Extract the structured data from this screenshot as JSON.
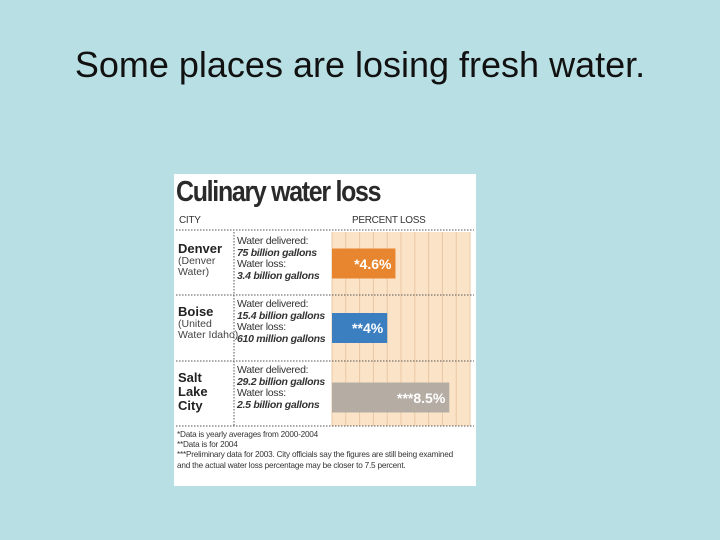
{
  "slide": {
    "title": "Some places are losing fresh water."
  },
  "chart_data": {
    "type": "bar",
    "orientation": "horizontal",
    "title": "Culinary water loss",
    "column_headers": {
      "city": "CITY",
      "percent": "PERCENT LOSS"
    },
    "xlim": [
      0,
      10
    ],
    "rows": [
      {
        "city": "Denver",
        "utility": "(Denver\nWater)",
        "delivered_label": "Water delivered:",
        "delivered": "75 billion gallons",
        "loss_label": "Water loss:",
        "loss": "3.4 billion gallons",
        "value": 4.6,
        "value_label": "*4.6%",
        "color": "#e8862f"
      },
      {
        "city": "Boise",
        "utility": "(United\nWater Idaho)",
        "delivered_label": "Water delivered:",
        "delivered": "15.4 billion gallons",
        "loss_label": "Water loss:",
        "loss": "610 million gallons",
        "value": 4.0,
        "value_label": "**4%",
        "color": "#3c7fc1"
      },
      {
        "city": "Salt\nLake\nCity",
        "utility": "",
        "delivered_label": "Water delivered:",
        "delivered": "29.2 billion gallons",
        "loss_label": "Water loss:",
        "loss": "2.5 billion gallons",
        "value": 8.5,
        "value_label": "***8.5%",
        "color": "#b5aca4"
      }
    ],
    "footnotes": [
      "*Data is yearly averages from 2000-2004",
      "**Data is for 2004",
      "***Preliminary data for 2003. City officials say the figures are still being examined",
      "and the actual  water loss percentage may be closer to 7.5 percent."
    ]
  }
}
